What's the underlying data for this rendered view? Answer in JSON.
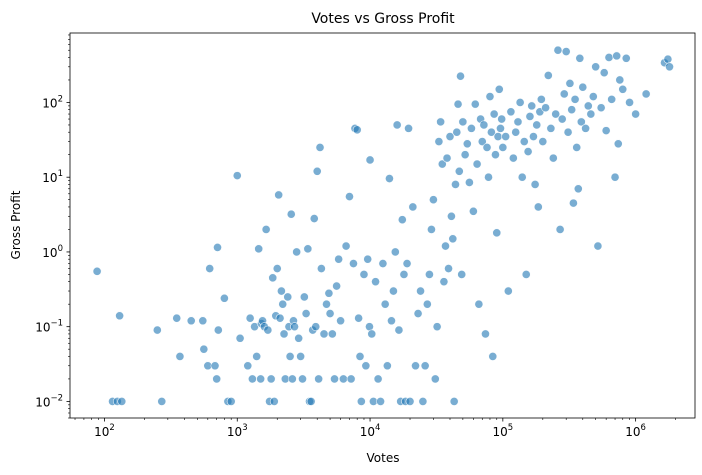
{
  "chart_data": {
    "type": "scatter",
    "title": "Votes vs Gross Profit",
    "xlabel": "Votes",
    "ylabel": "Gross Profit",
    "xscale": "log",
    "yscale": "log",
    "xlim": [
      55,
      2800000
    ],
    "ylim": [
      0.006,
      850
    ],
    "x_ticks": [
      {
        "value": 100,
        "base": "10",
        "exp": "2"
      },
      {
        "value": 1000,
        "base": "10",
        "exp": "3"
      },
      {
        "value": 10000,
        "base": "10",
        "exp": "4"
      },
      {
        "value": 100000,
        "base": "10",
        "exp": "5"
      },
      {
        "value": 1000000,
        "base": "10",
        "exp": "6"
      }
    ],
    "y_ticks": [
      {
        "value": 0.01,
        "base": "10",
        "exp": "−2"
      },
      {
        "value": 0.1,
        "base": "10",
        "exp": "−1"
      },
      {
        "value": 1,
        "base": "10",
        "exp": "0"
      },
      {
        "value": 10,
        "base": "10",
        "exp": "1"
      },
      {
        "value": 100,
        "base": "10",
        "exp": "2"
      }
    ],
    "grid": false,
    "legend": "none",
    "marker_color": "#1f77b4",
    "marker_alpha": 0.6,
    "points": [
      [
        88,
        0.55
      ],
      [
        115,
        0.01
      ],
      [
        125,
        0.01
      ],
      [
        130,
        0.14
      ],
      [
        135,
        0.01
      ],
      [
        250,
        0.09
      ],
      [
        270,
        0.01
      ],
      [
        350,
        0.13
      ],
      [
        370,
        0.04
      ],
      [
        450,
        0.12
      ],
      [
        550,
        0.12
      ],
      [
        560,
        0.05
      ],
      [
        600,
        0.03
      ],
      [
        620,
        0.6
      ],
      [
        680,
        0.03
      ],
      [
        700,
        0.02
      ],
      [
        710,
        1.15
      ],
      [
        720,
        0.09
      ],
      [
        800,
        0.24
      ],
      [
        850,
        0.01
      ],
      [
        900,
        0.01
      ],
      [
        1000,
        10.5
      ],
      [
        1050,
        0.07
      ],
      [
        1200,
        0.03
      ],
      [
        1250,
        0.13
      ],
      [
        1300,
        0.02
      ],
      [
        1350,
        0.1
      ],
      [
        1400,
        0.04
      ],
      [
        1450,
        1.1
      ],
      [
        1500,
        0.02
      ],
      [
        1520,
        0.11
      ],
      [
        1550,
        0.12
      ],
      [
        1600,
        0.1
      ],
      [
        1650,
        2.0
      ],
      [
        1700,
        0.09
      ],
      [
        1750,
        0.01
      ],
      [
        1800,
        0.02
      ],
      [
        1850,
        0.45
      ],
      [
        1900,
        0.01
      ],
      [
        1950,
        0.14
      ],
      [
        2000,
        0.6
      ],
      [
        2050,
        5.8
      ],
      [
        2100,
        0.13
      ],
      [
        2150,
        0.3
      ],
      [
        2200,
        0.2
      ],
      [
        2250,
        0.08
      ],
      [
        2300,
        0.02
      ],
      [
        2400,
        0.25
      ],
      [
        2450,
        0.1
      ],
      [
        2500,
        0.04
      ],
      [
        2550,
        3.2
      ],
      [
        2600,
        0.02
      ],
      [
        2650,
        0.12
      ],
      [
        2700,
        0.1
      ],
      [
        2800,
        1.0
      ],
      [
        2900,
        0.07
      ],
      [
        3000,
        0.04
      ],
      [
        3100,
        0.02
      ],
      [
        3200,
        0.25
      ],
      [
        3300,
        0.15
      ],
      [
        3400,
        1.1
      ],
      [
        3500,
        0.01
      ],
      [
        3600,
        0.01
      ],
      [
        3700,
        0.09
      ],
      [
        3800,
        2.8
      ],
      [
        3900,
        0.1
      ],
      [
        4000,
        12.0
      ],
      [
        4100,
        0.02
      ],
      [
        4200,
        25.0
      ],
      [
        4300,
        0.6
      ],
      [
        4500,
        0.08
      ],
      [
        4700,
        0.2
      ],
      [
        4900,
        0.28
      ],
      [
        5000,
        0.15
      ],
      [
        5200,
        0.08
      ],
      [
        5400,
        0.02
      ],
      [
        5600,
        0.35
      ],
      [
        5800,
        0.8
      ],
      [
        6000,
        0.12
      ],
      [
        6300,
        0.02
      ],
      [
        6600,
        1.2
      ],
      [
        7000,
        5.5
      ],
      [
        7200,
        0.02
      ],
      [
        7500,
        0.7
      ],
      [
        7700,
        45.0
      ],
      [
        8000,
        43.0
      ],
      [
        8200,
        0.13
      ],
      [
        8400,
        0.04
      ],
      [
        8600,
        0.01
      ],
      [
        9000,
        0.5
      ],
      [
        9300,
        0.03
      ],
      [
        9600,
        0.8
      ],
      [
        9900,
        0.1
      ],
      [
        10000,
        17.0
      ],
      [
        10300,
        0.08
      ],
      [
        10600,
        0.01
      ],
      [
        11000,
        0.4
      ],
      [
        11500,
        0.02
      ],
      [
        12000,
        0.01
      ],
      [
        12500,
        0.7
      ],
      [
        13000,
        0.2
      ],
      [
        13500,
        0.03
      ],
      [
        14000,
        9.6
      ],
      [
        14500,
        0.12
      ],
      [
        15000,
        0.3
      ],
      [
        15500,
        1.0
      ],
      [
        16000,
        50.0
      ],
      [
        16500,
        0.09
      ],
      [
        17000,
        0.01
      ],
      [
        17500,
        2.7
      ],
      [
        18000,
        0.5
      ],
      [
        18500,
        0.01
      ],
      [
        19000,
        0.7
      ],
      [
        19500,
        45.0
      ],
      [
        20000,
        0.01
      ],
      [
        21000,
        4.0
      ],
      [
        22000,
        0.03
      ],
      [
        23000,
        0.15
      ],
      [
        24000,
        0.3
      ],
      [
        25000,
        0.01
      ],
      [
        26000,
        0.03
      ],
      [
        27000,
        0.2
      ],
      [
        28000,
        0.5
      ],
      [
        29000,
        2.0
      ],
      [
        30000,
        5.0
      ],
      [
        31000,
        0.02
      ],
      [
        32000,
        0.1
      ],
      [
        33000,
        30.0
      ],
      [
        34000,
        55.0
      ],
      [
        35000,
        15.0
      ],
      [
        36000,
        0.4
      ],
      [
        37000,
        1.2
      ],
      [
        38000,
        18.0
      ],
      [
        39000,
        0.6
      ],
      [
        40000,
        35.0
      ],
      [
        41000,
        3.0
      ],
      [
        42000,
        1.5
      ],
      [
        43000,
        0.01
      ],
      [
        44000,
        8.0
      ],
      [
        45000,
        40.0
      ],
      [
        46000,
        95.0
      ],
      [
        47000,
        12.0
      ],
      [
        48000,
        225.0
      ],
      [
        49000,
        0.5
      ],
      [
        50000,
        55.0
      ],
      [
        52000,
        20.0
      ],
      [
        54000,
        28.0
      ],
      [
        56000,
        8.5
      ],
      [
        58000,
        45.0
      ],
      [
        60000,
        3.5
      ],
      [
        62000,
        95.0
      ],
      [
        64000,
        15.0
      ],
      [
        66000,
        0.2
      ],
      [
        68000,
        60.0
      ],
      [
        70000,
        30.0
      ],
      [
        72000,
        50.0
      ],
      [
        74000,
        0.08
      ],
      [
        76000,
        25.0
      ],
      [
        78000,
        10.0
      ],
      [
        80000,
        120.0
      ],
      [
        82000,
        40.0
      ],
      [
        84000,
        0.04
      ],
      [
        86000,
        70.0
      ],
      [
        88000,
        20.0
      ],
      [
        90000,
        1.8
      ],
      [
        92000,
        35.0
      ],
      [
        94000,
        150.0
      ],
      [
        96000,
        45.0
      ],
      [
        98000,
        60.0
      ],
      [
        100000,
        25.0
      ],
      [
        105000,
        35.0
      ],
      [
        110000,
        0.3
      ],
      [
        115000,
        75.0
      ],
      [
        120000,
        18.0
      ],
      [
        125000,
        40.0
      ],
      [
        130000,
        55.0
      ],
      [
        135000,
        100.0
      ],
      [
        140000,
        10.0
      ],
      [
        145000,
        30.0
      ],
      [
        150000,
        0.5
      ],
      [
        155000,
        22.0
      ],
      [
        160000,
        65.0
      ],
      [
        165000,
        90.0
      ],
      [
        170000,
        35.0
      ],
      [
        175000,
        8.0
      ],
      [
        180000,
        50.0
      ],
      [
        185000,
        4.0
      ],
      [
        190000,
        75.0
      ],
      [
        195000,
        110.0
      ],
      [
        200000,
        30.0
      ],
      [
        210000,
        85.0
      ],
      [
        220000,
        230.0
      ],
      [
        230000,
        45.0
      ],
      [
        240000,
        18.0
      ],
      [
        250000,
        70.0
      ],
      [
        260000,
        500.0
      ],
      [
        270000,
        2.0
      ],
      [
        280000,
        60.0
      ],
      [
        290000,
        130.0
      ],
      [
        300000,
        480.0
      ],
      [
        310000,
        40.0
      ],
      [
        320000,
        180.0
      ],
      [
        330000,
        80.0
      ],
      [
        340000,
        4.5
      ],
      [
        350000,
        110.0
      ],
      [
        360000,
        25.0
      ],
      [
        370000,
        7.0
      ],
      [
        380000,
        390.0
      ],
      [
        390000,
        55.0
      ],
      [
        400000,
        160.0
      ],
      [
        420000,
        45.0
      ],
      [
        440000,
        90.0
      ],
      [
        460000,
        70.0
      ],
      [
        480000,
        120.0
      ],
      [
        500000,
        300.0
      ],
      [
        520000,
        1.2
      ],
      [
        550000,
        85.0
      ],
      [
        580000,
        250.0
      ],
      [
        600000,
        42.0
      ],
      [
        630000,
        400.0
      ],
      [
        660000,
        110.0
      ],
      [
        700000,
        10.0
      ],
      [
        720000,
        420.0
      ],
      [
        740000,
        28.0
      ],
      [
        760000,
        200.0
      ],
      [
        800000,
        150.0
      ],
      [
        850000,
        390.0
      ],
      [
        900000,
        100.0
      ],
      [
        1000000,
        70.0
      ],
      [
        1200000,
        130.0
      ],
      [
        1650000,
        340.0
      ],
      [
        1750000,
        380.0
      ],
      [
        1800000,
        300.0
      ]
    ]
  }
}
